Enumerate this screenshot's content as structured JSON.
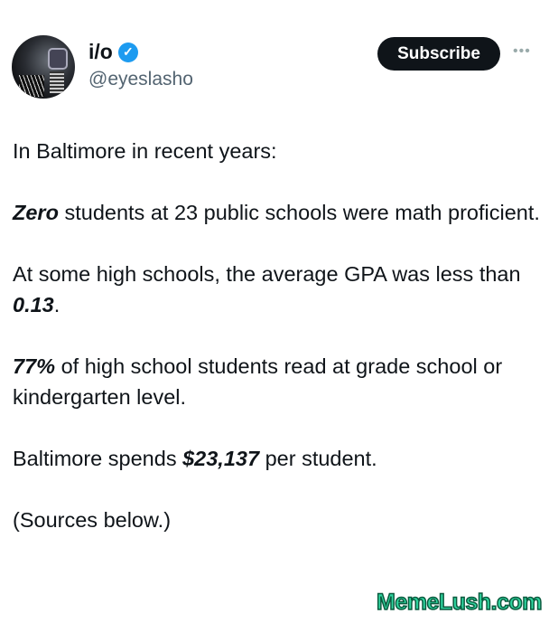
{
  "author": {
    "name": "i/o",
    "handle": "@eyeslasho",
    "verified": true
  },
  "actions": {
    "subscribe_label": "Subscribe",
    "more_label": "•••"
  },
  "post": {
    "p1": "In Baltimore in recent years:",
    "p2_bold": "Zero",
    "p2_rest": " students at 23 public schools were math proficient.",
    "p3_start": "At some high schools, the average GPA was less than ",
    "p3_bold": "0.13",
    "p3_end": ".",
    "p4_bold": "77%",
    "p4_rest": " of high school students read at grade school or kindergarten level.",
    "p5_start": "Baltimore spends ",
    "p5_bold": "$23,137",
    "p5_end": " per student.",
    "p6": "(Sources below.)"
  },
  "watermark": "MemeLush.com",
  "colors": {
    "verified": "#1d9bf0",
    "button": "#0f1419",
    "watermark": "#2fd6a0"
  }
}
